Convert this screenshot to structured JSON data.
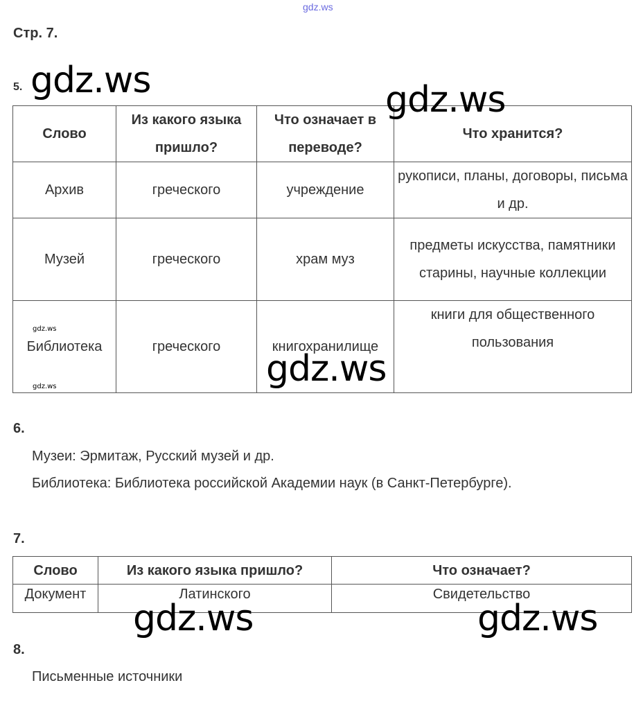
{
  "watermark": "gdz.ws",
  "page_label": "Стр. 7.",
  "task5": {
    "number": "5.",
    "headers": [
      "Слово",
      "Из какого языка пришло?",
      "Что означает в переводе?",
      "Что хранится?"
    ],
    "rows": [
      [
        "Архив",
        "греческого",
        "учреждение",
        "рукописи, планы, договоры, письма и др."
      ],
      [
        "Музей",
        "греческого",
        "храм муз",
        "предметы искусства, памятники старины, научные коллекции"
      ],
      [
        "Библиотека",
        "греческого",
        "книгохранилище",
        "книги для общественного пользования"
      ]
    ]
  },
  "task6": {
    "number": "6.",
    "lines": [
      "Музеи: Эрмитаж, Русский музей и др.",
      "Библиотека: Библиотека российской Академии наук (в Санкт-Петербурге)."
    ]
  },
  "task7": {
    "number": "7.",
    "headers": [
      "Слово",
      "Из какого языка пришло?",
      "Что означает?"
    ],
    "rows": [
      [
        "Документ",
        "Латинского",
        "Свидетельство"
      ]
    ]
  },
  "task8": {
    "number": "8.",
    "answer": "Письменные источники"
  }
}
